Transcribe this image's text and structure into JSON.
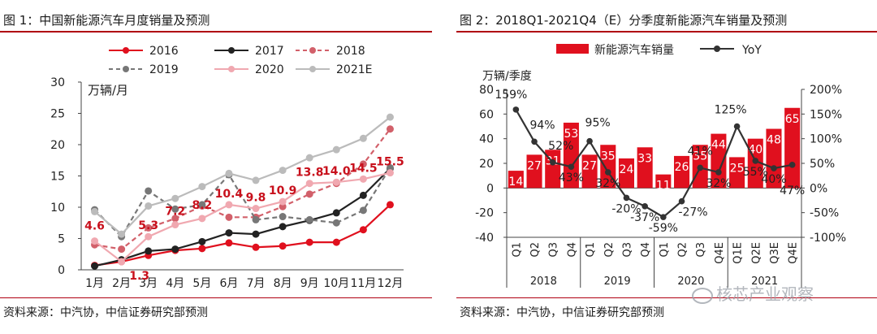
{
  "left": {
    "title": "图 1：中国新能源汽车月度销量及预测",
    "source": "资料来源：中汽协，中信证券研究部预测"
  },
  "right": {
    "title": "图 2：2018Q1-2021Q4（E）分季度新能源汽车销量及预测",
    "source": "资料来源：中汽协，中信证券研究部预测"
  },
  "watermark": "核芯产业观察",
  "chart_data": [
    {
      "type": "line",
      "ylabel": "万辆/月",
      "ylim": [
        0,
        30
      ],
      "yticks": [
        0,
        5,
        10,
        15,
        20,
        25,
        30
      ],
      "categories": [
        "1月",
        "2月",
        "3月",
        "4月",
        "5月",
        "6月",
        "7月",
        "8月",
        "9月",
        "10月",
        "11月",
        "12月"
      ],
      "legend_placement": "top",
      "series": [
        {
          "name": "2016",
          "color": "#e0101e",
          "dashed": false,
          "values": [
            0.7,
            1.3,
            2.3,
            3.1,
            3.4,
            4.3,
            3.6,
            3.8,
            4.4,
            4.4,
            6.4,
            10.4
          ]
        },
        {
          "name": "2017",
          "color": "#222222",
          "dashed": false,
          "values": [
            0.6,
            1.6,
            3.0,
            3.3,
            4.5,
            5.9,
            5.7,
            6.9,
            7.9,
            9.1,
            11.9,
            16.2
          ]
        },
        {
          "name": "2018",
          "color": "#d2606a",
          "dashed": true,
          "values": [
            4.0,
            3.3,
            6.7,
            8.2,
            10.2,
            8.4,
            8.4,
            10.1,
            12.1,
            13.8,
            16.9,
            22.5
          ]
        },
        {
          "name": "2019",
          "color": "#777777",
          "dashed": true,
          "values": [
            9.6,
            5.3,
            12.6,
            9.7,
            10.4,
            15.2,
            8.0,
            8.5,
            8.0,
            7.5,
            9.5,
            16.3
          ]
        },
        {
          "name": "2020",
          "color": "#f0a8b0",
          "dashed": false,
          "values": [
            4.6,
            1.3,
            5.3,
            7.2,
            8.2,
            10.4,
            9.8,
            10.9,
            13.8,
            14.0,
            14.5,
            15.5
          ],
          "labels": [
            "4.6",
            "1.3",
            "5.3",
            "7.2",
            "8.2",
            "10.4",
            "9.8",
            "10.9",
            "13.8",
            "14.0",
            "14.5",
            "15.5"
          ]
        },
        {
          "name": "2021E",
          "color": "#bbbbbb",
          "dashed": false,
          "values": [
            9.3,
            5.7,
            10.2,
            11.4,
            13.3,
            15.4,
            14.3,
            15.9,
            17.9,
            19.2,
            21.0,
            24.4
          ]
        }
      ]
    },
    {
      "type": "bar+line",
      "ylabel": "万辆/季度",
      "ylim": [
        -40,
        80
      ],
      "yticks": [
        -40,
        -20,
        0,
        20,
        40,
        60,
        80
      ],
      "y2lim": [
        -100,
        200
      ],
      "y2ticks": [
        "-100%",
        "-50%",
        "0%",
        "50%",
        "100%",
        "150%",
        "200%"
      ],
      "categories": [
        "Q1",
        "Q2",
        "Q3",
        "Q4",
        "Q1",
        "Q2",
        "Q3",
        "Q4",
        "Q1",
        "Q2",
        "Q3",
        "Q4E",
        "Q1E",
        "Q2E",
        "Q3E",
        "Q4E"
      ],
      "year_labels": [
        "2018",
        "2019",
        "2020",
        "2021"
      ],
      "legend_placement": "top",
      "bar_series": {
        "name": "新能源汽车销量",
        "color": "#e0101e",
        "values": [
          14,
          27,
          31,
          53,
          27,
          35,
          24,
          33,
          11,
          26,
          35,
          44,
          25,
          40,
          48,
          65
        ]
      },
      "line_series": {
        "name": "YoY",
        "color": "#333333",
        "values": [
          159,
          94,
          52,
          43,
          95,
          32,
          -20,
          -37,
          -59,
          -27,
          41,
          32,
          125,
          55,
          40,
          47
        ],
        "labels": [
          "159%",
          "94%",
          "52%",
          "43%",
          "95%",
          "32%",
          "-20%",
          "-37%",
          "-59%",
          "-27%",
          "41%",
          "32%",
          "125%",
          "55%",
          "40%",
          "47%"
        ]
      }
    }
  ]
}
